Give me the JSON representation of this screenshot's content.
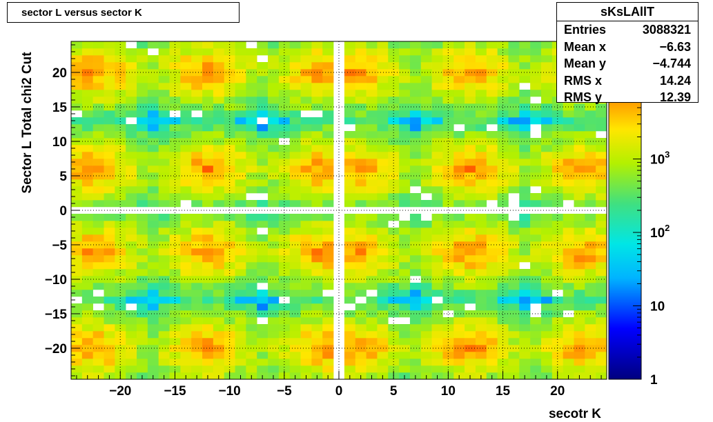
{
  "chart_data": {
    "type": "heatmap",
    "title": "sector L versus sector K",
    "xlabel": "secotr K",
    "ylabel": "Sector L  Total chi2 Cut",
    "xlim": [
      -24.5,
      24.5
    ],
    "ylim": [
      -24.5,
      24.5
    ],
    "grid": true,
    "color_scale": "log",
    "zlim": [
      1,
      40000
    ],
    "x_ticks": [
      -20,
      -15,
      -10,
      -5,
      0,
      5,
      10,
      15,
      20
    ],
    "y_ticks": [
      -20,
      -15,
      -10,
      -5,
      0,
      5,
      10,
      15,
      20
    ],
    "x_tick_labels": [
      "−20",
      "−15",
      "−10",
      "−5",
      "0",
      "5",
      "10",
      "15",
      "20"
    ],
    "y_tick_labels": [
      "−20",
      "−15",
      "−10",
      "−5",
      "0",
      "5",
      "10",
      "15",
      "20"
    ],
    "z_ticks": [
      {
        "value": 1,
        "label": "1"
      },
      {
        "value": 10,
        "label": "10"
      },
      {
        "value": 100,
        "label": "10",
        "sup": "2"
      },
      {
        "value": 1000,
        "label": "10",
        "sup": "3"
      }
    ],
    "hot_centers_x": [
      -22.5,
      -12,
      -1.5,
      1.5,
      12,
      22.5
    ],
    "hot_centers_y": [
      -20,
      -6,
      6,
      20
    ],
    "empty_row_y": 0,
    "empty_col_x": 0
  },
  "stats": {
    "name": "sKsLAllT",
    "rows": [
      {
        "label": "Entries",
        "value": "3088321"
      },
      {
        "label": "Mean x",
        "value": "−6.63"
      },
      {
        "label": "Mean y",
        "value": "−4.744"
      },
      {
        "label": "RMS x",
        "value": "14.24"
      },
      {
        "label": "RMS y",
        "value": "12.39"
      }
    ]
  }
}
